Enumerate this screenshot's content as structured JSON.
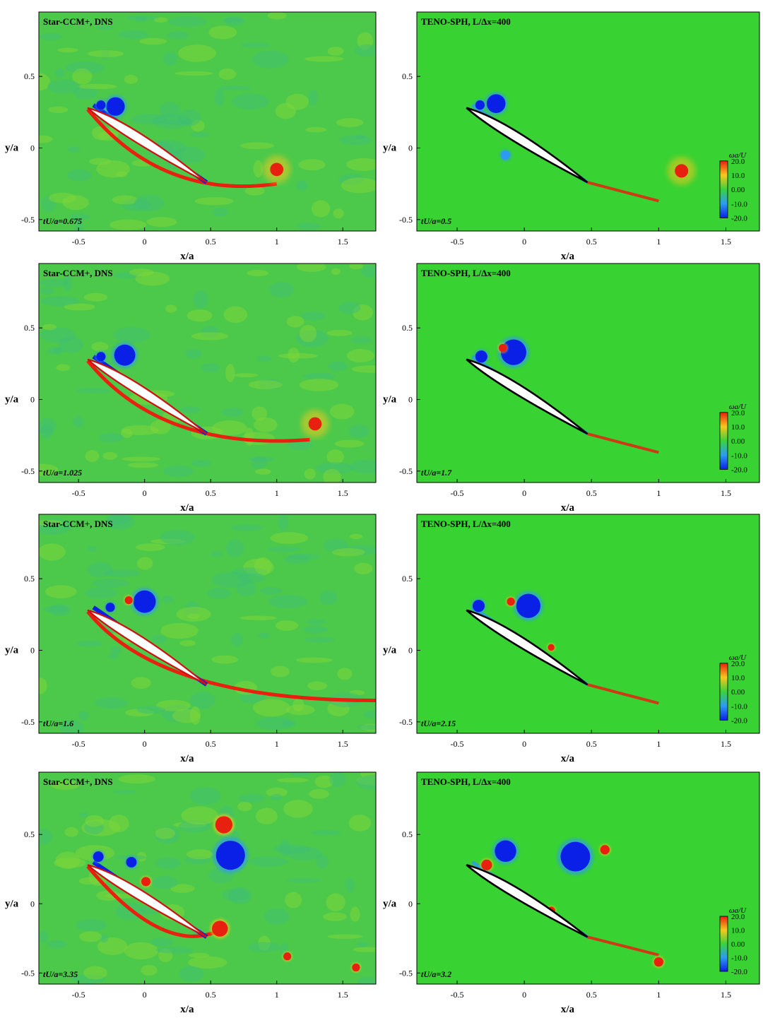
{
  "chart_data": {
    "type": "heatmap",
    "panels": [
      {
        "title": "Star-CCM+, DNS",
        "time_label": "tU/a=0.675",
        "xlabel": "x/a",
        "ylabel": "y/a",
        "xticks": [
          "-0.5",
          "0",
          "0.5",
          "1",
          "1.5"
        ],
        "yticks": [
          "0.5",
          "0",
          "-0.5"
        ],
        "xlim": [
          -0.8,
          1.75
        ],
        "ylim": [
          -0.58,
          0.95
        ],
        "colorbar": null
      },
      {
        "title": "TENO-SPH, L/Δx=400",
        "time_label": "tU/a=0.5",
        "xlabel": "x/a",
        "ylabel": "y/a",
        "xticks": [
          "-0.5",
          "0",
          "0.5",
          "1",
          "1.5"
        ],
        "yticks": [
          "0.5",
          "0",
          "-0.5"
        ],
        "xlim": [
          -0.8,
          1.75
        ],
        "ylim": [
          -0.58,
          0.95
        ],
        "colorbar": {
          "title": "ωa/U",
          "ticks": [
            "20.0",
            "10.0",
            "0.00",
            "-10.0",
            "-20.0"
          ],
          "range": [
            -20,
            20
          ]
        }
      },
      {
        "title": "Star-CCM+, DNS",
        "time_label": "tU/a=1.025",
        "xlabel": "x/a",
        "ylabel": "y/a",
        "xticks": [
          "-0.5",
          "0",
          "0.5",
          "1",
          "1.5"
        ],
        "yticks": [
          "0.5",
          "0",
          "-0.5"
        ],
        "xlim": [
          -0.8,
          1.75
        ],
        "ylim": [
          -0.58,
          0.95
        ],
        "colorbar": null
      },
      {
        "title": "TENO-SPH, L/Δx=400",
        "time_label": "tU/a=1.7",
        "xlabel": "x/a",
        "ylabel": "y/a",
        "xticks": [
          "-0.5",
          "0",
          "0.5",
          "1",
          "1.5"
        ],
        "yticks": [
          "0.5",
          "0",
          "-0.5"
        ],
        "xlim": [
          -0.8,
          1.75
        ],
        "ylim": [
          -0.58,
          0.95
        ],
        "colorbar": {
          "title": "ωa/U",
          "ticks": [
            "20.0",
            "10.0",
            "0.00",
            "-10.0",
            "-20.0"
          ],
          "range": [
            -20,
            20
          ]
        }
      },
      {
        "title": "Star-CCM+, DNS",
        "time_label": "tU/a=1.6",
        "xlabel": "x/a",
        "ylabel": "y/a",
        "xticks": [
          "-0.5",
          "0",
          "0.5",
          "1",
          "1.5"
        ],
        "yticks": [
          "0.5",
          "0",
          "-0.5"
        ],
        "xlim": [
          -0.8,
          1.75
        ],
        "ylim": [
          -0.58,
          0.95
        ],
        "colorbar": null
      },
      {
        "title": "TENO-SPH, L/Δx=400",
        "time_label": "tU/a=2.15",
        "xlabel": "x/a",
        "ylabel": "y/a",
        "xticks": [
          "-0.5",
          "0",
          "0.5",
          "1",
          "1.5"
        ],
        "yticks": [
          "0.5",
          "0",
          "-0.5"
        ],
        "xlim": [
          -0.8,
          1.75
        ],
        "ylim": [
          -0.58,
          0.95
        ],
        "colorbar": {
          "title": "ωa/U",
          "ticks": [
            "20.0",
            "10.0",
            "0.00",
            "-10.0",
            "-20.0"
          ],
          "range": [
            -20,
            20
          ]
        }
      },
      {
        "title": "Star-CCM+, DNS",
        "time_label": "tU/a=3.35",
        "xlabel": "x/a",
        "ylabel": "y/a",
        "xticks": [
          "-0.5",
          "0",
          "0.5",
          "1",
          "1.5"
        ],
        "yticks": [
          "0.5",
          "0",
          "-0.5"
        ],
        "xlim": [
          -0.8,
          1.75
        ],
        "ylim": [
          -0.58,
          0.95
        ],
        "colorbar": null
      },
      {
        "title": "TENO-SPH, L/Δx=400",
        "time_label": "tU/a=3.2",
        "xlabel": "x/a",
        "ylabel": "y/a",
        "xticks": [
          "-0.5",
          "0",
          "0.5",
          "1",
          "1.5"
        ],
        "yticks": [
          "0.5",
          "0",
          "-0.5"
        ],
        "xlim": [
          -0.8,
          1.75
        ],
        "ylim": [
          -0.58,
          0.95
        ],
        "colorbar": {
          "title": "ωa/U",
          "ticks": [
            "20.0",
            "10.0",
            "0.00",
            "-10.0",
            "-20.0"
          ],
          "range": [
            -20,
            20
          ]
        }
      }
    ],
    "colormap": {
      "neg_extreme": "#0a20e6",
      "neg": "#2e9bf0",
      "zero": "#39d23c",
      "pos": "#f5c81e",
      "pos_extreme": "#e82010"
    },
    "airfoil": {
      "leading_edge": [
        -0.43,
        0.28
      ],
      "trailing_edge": [
        0.47,
        -0.24
      ]
    }
  }
}
